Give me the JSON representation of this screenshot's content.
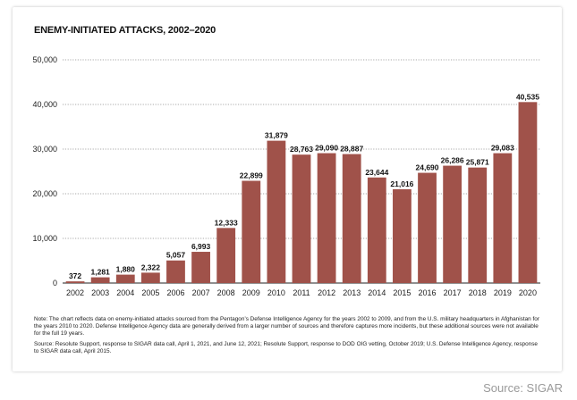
{
  "chart_data": {
    "type": "bar",
    "title": "ENEMY-INITIATED ATTACKS, 2002–2020",
    "xlabel": "",
    "ylabel": "",
    "ylim": [
      0,
      50000
    ],
    "yticks": [
      0,
      10000,
      20000,
      30000,
      40000,
      50000
    ],
    "ytick_labels": [
      "0",
      "10,000",
      "20,000",
      "30,000",
      "40,000",
      "50,000"
    ],
    "categories": [
      "2002",
      "2003",
      "2004",
      "2005",
      "2006",
      "2007",
      "2008",
      "2009",
      "2010",
      "2011",
      "2012",
      "2013",
      "2014",
      "2015",
      "2016",
      "2017",
      "2018",
      "2019",
      "2020"
    ],
    "values": [
      372,
      1281,
      1880,
      2322,
      5057,
      6993,
      12333,
      22899,
      31879,
      28763,
      29090,
      28887,
      23644,
      21016,
      24690,
      26286,
      25871,
      29083,
      40535
    ],
    "value_labels": [
      "372",
      "1,281",
      "1,880",
      "2,322",
      "5,057",
      "6,993",
      "12,333",
      "22,899",
      "31,879",
      "28,763",
      "29,090",
      "28,887",
      "23,644",
      "21,016",
      "24,690",
      "26,286",
      "25,871",
      "29,083",
      "40,535"
    ],
    "grid": true,
    "legend": "none"
  },
  "colors": {
    "bar": "#a0524a",
    "grid": "#8c8c8c"
  },
  "notes": {
    "note": "Note: The chart reflects data on enemy-initiated attacks sourced from the Pentagon’s Defense Intelligence Agency for the years 2002 to 2009, and from the U.S. military headquarters in Afghanistan for the years 2010 to 2020. Defense Intelligence Agency data are generally derived from a larger number of sources and therefore captures more incidents, but these additional sources were not available for the full 19 years.",
    "source": "Source: Resolute Support, response to SIGAR data call, April 1, 2021, and June 12, 2021; Resolute Support, response to DOD OIG vetting, October 2019; U.S. Defense Intelligence Agency, response to SIGAR data call, April 2015."
  },
  "credit": "Source: SIGAR"
}
